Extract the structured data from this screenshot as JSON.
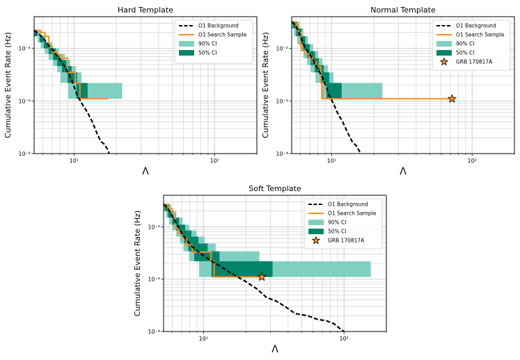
{
  "figure": {
    "x_axis_symbol": "Λ",
    "y_axis_label": "Cumulative Event Rate (Hz)"
  },
  "colors": {
    "background_line": "#000000",
    "search_sample": "#ff8c1a",
    "ci90": "#80d0c2",
    "ci50": "#00856a",
    "grid": "#c8c8c8",
    "star_fill": "#ff8c1a"
  },
  "chart_data": [
    {
      "type": "line",
      "title": "Hard Template",
      "xlabel": "Λ",
      "ylabel": "Cumulative Event Rate (Hz)",
      "xscale": "log",
      "yscale": "log",
      "xlim": [
        5.2,
        200
      ],
      "ylim": [
        0.0001,
        0.04
      ],
      "x_ticks": [
        {
          "value": 10,
          "label": "10¹"
        },
        {
          "value": 100,
          "label": "10²"
        }
      ],
      "y_ticks": [
        {
          "value": 0.0001,
          "label": "10⁻⁴"
        },
        {
          "value": 0.001,
          "label": "10⁻³"
        },
        {
          "value": 0.01,
          "label": "10⁻²"
        }
      ],
      "grid": true,
      "legend_position": "top-right",
      "legend": [
        {
          "key": "background",
          "label": "O1 Background"
        },
        {
          "key": "sample",
          "label": "O1 Search Sample"
        },
        {
          "key": "ci90",
          "label": "90% CI"
        },
        {
          "key": "ci50",
          "label": "50% CI"
        }
      ],
      "series": [
        {
          "name": "O1 Background",
          "style": "dashed",
          "x": [
            5.2,
            5.6,
            6.0,
            6.5,
            7.0,
            7.5,
            8.0,
            8.6,
            9.2,
            9.8,
            10.5,
            11.5,
            12.5,
            13.5,
            14.5,
            15.5,
            16.5,
            17.3,
            17.8
          ],
          "y": [
            0.022,
            0.019,
            0.016,
            0.012,
            0.0095,
            0.0075,
            0.006,
            0.0045,
            0.0032,
            0.0022,
            0.0013,
            0.00085,
            0.0006,
            0.0004,
            0.00025,
            0.00017,
            0.00015,
            0.00012,
            0.0001
          ]
        },
        {
          "name": "O1 Search Sample",
          "style": "step",
          "x": [
            5.2,
            5.8,
            6.2,
            6.6,
            7.0,
            7.5,
            8.0,
            9.0,
            10.2,
            10.8,
            11.0,
            17.5
          ],
          "y": [
            0.022,
            0.02,
            0.017,
            0.011,
            0.0085,
            0.0075,
            0.0065,
            0.0035,
            0.0022,
            0.0022,
            0.0011,
            0.0011
          ]
        }
      ],
      "ci": [
        {
          "y_top": 0.022,
          "y_bot": 0.017,
          "ci90": [
            5.2,
            5.8
          ],
          "ci50": [
            5.2,
            5.5
          ]
        },
        {
          "y_top": 0.017,
          "y_bot": 0.013,
          "ci90": [
            5.5,
            6.3
          ],
          "ci50": [
            5.7,
            6.1
          ]
        },
        {
          "y_top": 0.013,
          "y_bot": 0.01,
          "ci90": [
            5.8,
            7.0
          ],
          "ci50": [
            6.1,
            6.7
          ]
        },
        {
          "y_top": 0.01,
          "y_bot": 0.0078,
          "ci90": [
            6.2,
            7.8
          ],
          "ci50": [
            6.6,
            7.4
          ]
        },
        {
          "y_top": 0.0078,
          "y_bot": 0.006,
          "ci90": [
            6.6,
            8.6
          ],
          "ci50": [
            7.1,
            8.1
          ]
        },
        {
          "y_top": 0.006,
          "y_bot": 0.0046,
          "ci90": [
            7.1,
            9.4
          ],
          "ci50": [
            7.6,
            8.8
          ]
        },
        {
          "y_top": 0.0046,
          "y_bot": 0.0035,
          "ci90": [
            7.6,
            10.3
          ],
          "ci50": [
            8.2,
            9.6
          ]
        },
        {
          "y_top": 0.0035,
          "y_bot": 0.0022,
          "ci90": [
            8.0,
            11.3
          ],
          "ci50": [
            9.0,
            10.5
          ]
        },
        {
          "y_top": 0.0022,
          "y_bot": 0.0011,
          "ci90": [
            9.1,
            22.0
          ],
          "ci50": [
            10.4,
            12.5
          ]
        }
      ]
    },
    {
      "type": "line",
      "title": "Normal Template",
      "xlabel": "Λ",
      "ylabel": "Cumulative Event Rate (Hz)",
      "xscale": "log",
      "yscale": "log",
      "xlim": [
        5.2,
        200
      ],
      "ylim": [
        0.0001,
        0.04
      ],
      "x_ticks": [
        {
          "value": 10,
          "label": "10¹"
        },
        {
          "value": 100,
          "label": "10²"
        }
      ],
      "y_ticks": [
        {
          "value": 0.0001,
          "label": "10⁻⁴"
        },
        {
          "value": 0.001,
          "label": "10⁻³"
        },
        {
          "value": 0.01,
          "label": "10⁻²"
        }
      ],
      "grid": true,
      "legend_position": "top-right",
      "legend": [
        {
          "key": "background",
          "label": "O1 Background"
        },
        {
          "key": "sample",
          "label": "O1 Search Sample"
        },
        {
          "key": "ci90",
          "label": "90% CI"
        },
        {
          "key": "ci50",
          "label": "50% CI"
        },
        {
          "key": "star",
          "label": "GRB 170817A"
        }
      ],
      "series": [
        {
          "name": "O1 Background",
          "style": "dashed",
          "x": [
            5.2,
            5.5,
            5.8,
            6.1,
            6.4,
            6.8,
            7.2,
            7.6,
            8.0,
            8.5,
            9.0,
            9.6,
            10.3,
            11.0,
            12.0,
            13.0,
            14.0,
            15.0,
            15.8,
            16.3
          ],
          "y": [
            0.032,
            0.028,
            0.022,
            0.015,
            0.011,
            0.0085,
            0.0068,
            0.0052,
            0.004,
            0.003,
            0.0021,
            0.0013,
            0.0009,
            0.0006,
            0.0004,
            0.00025,
            0.00017,
            0.00014,
            0.00011,
            0.0001
          ]
        },
        {
          "name": "O1 Search Sample",
          "style": "step",
          "x": [
            5.2,
            5.6,
            5.8,
            6.0,
            6.2,
            6.5,
            6.9,
            7.3,
            7.8,
            8.4,
            8.6,
            72.0
          ],
          "y": [
            0.032,
            0.028,
            0.02,
            0.011,
            0.009,
            0.0078,
            0.0068,
            0.0055,
            0.0045,
            0.0022,
            0.0011,
            0.0011
          ]
        }
      ],
      "ci": [
        {
          "y_top": 0.032,
          "y_bot": 0.024,
          "ci90": [
            5.2,
            5.9
          ],
          "ci50": [
            5.3,
            5.7
          ]
        },
        {
          "y_top": 0.024,
          "y_bot": 0.017,
          "ci90": [
            5.4,
            6.3
          ],
          "ci50": [
            5.6,
            6.1
          ]
        },
        {
          "y_top": 0.017,
          "y_bot": 0.012,
          "ci90": [
            5.7,
            6.8
          ],
          "ci50": [
            6.0,
            6.5
          ]
        },
        {
          "y_top": 0.012,
          "y_bot": 0.0088,
          "ci90": [
            6.0,
            7.4
          ],
          "ci50": [
            6.3,
            7.0
          ]
        },
        {
          "y_top": 0.0088,
          "y_bot": 0.0065,
          "ci90": [
            6.3,
            8.0
          ],
          "ci50": [
            6.7,
            7.6
          ]
        },
        {
          "y_top": 0.0065,
          "y_bot": 0.0048,
          "ci90": [
            6.7,
            8.6
          ],
          "ci50": [
            7.1,
            8.1
          ]
        },
        {
          "y_top": 0.0048,
          "y_bot": 0.0035,
          "ci90": [
            7.1,
            9.4
          ],
          "ci50": [
            7.6,
            8.8
          ]
        },
        {
          "y_top": 0.0035,
          "y_bot": 0.0022,
          "ci90": [
            7.7,
            10.3
          ],
          "ci50": [
            8.3,
            9.6
          ]
        },
        {
          "y_top": 0.0022,
          "y_bot": 0.0011,
          "ci90": [
            8.4,
            23.0
          ],
          "ci50": [
            9.2,
            11.8
          ]
        }
      ],
      "marker": {
        "label": "GRB 170817A",
        "x": 72.0,
        "y": 0.0011
      }
    },
    {
      "type": "line",
      "title": "Soft Template",
      "xlabel": "Λ",
      "ylabel": "Cumulative Event Rate (Hz)",
      "xscale": "log",
      "yscale": "log",
      "xlim": [
        5.2,
        200
      ],
      "ylim": [
        0.0001,
        0.04
      ],
      "x_ticks": [
        {
          "value": 10,
          "label": "10¹"
        },
        {
          "value": 100,
          "label": "10²"
        }
      ],
      "y_ticks": [
        {
          "value": 0.0001,
          "label": "10⁻⁴"
        },
        {
          "value": 0.001,
          "label": "10⁻³"
        },
        {
          "value": 0.01,
          "label": "10⁻²"
        }
      ],
      "grid": true,
      "legend_position": "top-right",
      "legend": [
        {
          "key": "background",
          "label": "O1 Background"
        },
        {
          "key": "sample",
          "label": "O1 Search Sample"
        },
        {
          "key": "ci90",
          "label": "90% CI"
        },
        {
          "key": "ci50",
          "label": "50% CI"
        },
        {
          "key": "star",
          "label": "GRB 170817A"
        }
      ],
      "series": [
        {
          "name": "O1 Background",
          "style": "dashed",
          "x": [
            5.2,
            5.6,
            6.0,
            6.5,
            7.0,
            7.6,
            8.3,
            9.0,
            10.0,
            11.5,
            13.0,
            15.0,
            17.0,
            20.0,
            24.0,
            28.0,
            33.0,
            38.0,
            45.0,
            55.0,
            65.0,
            75.0,
            85.0,
            95.0,
            100.0
          ],
          "y": [
            0.027,
            0.022,
            0.016,
            0.011,
            0.0075,
            0.0055,
            0.0042,
            0.0035,
            0.0028,
            0.0022,
            0.0018,
            0.0014,
            0.00115,
            0.0009,
            0.00065,
            0.00045,
            0.00038,
            0.0003,
            0.00022,
            0.0002,
            0.00017,
            0.00016,
            0.00014,
            0.00011,
            0.0001
          ]
        },
        {
          "name": "O1 Search Sample",
          "style": "step",
          "x": [
            5.2,
            5.6,
            6.0,
            6.3,
            6.6,
            7.0,
            7.6,
            8.3,
            8.8,
            11.3,
            11.9,
            26.0
          ],
          "y": [
            0.027,
            0.022,
            0.017,
            0.0095,
            0.0075,
            0.006,
            0.0045,
            0.0033,
            0.0033,
            0.0022,
            0.0011,
            0.0011
          ]
        }
      ],
      "ci": [
        {
          "y_top": 0.027,
          "y_bot": 0.02,
          "ci90": [
            5.2,
            5.9
          ],
          "ci50": [
            5.3,
            5.7
          ]
        },
        {
          "y_top": 0.02,
          "y_bot": 0.015,
          "ci90": [
            5.4,
            6.4
          ],
          "ci50": [
            5.6,
            6.1
          ]
        },
        {
          "y_top": 0.015,
          "y_bot": 0.011,
          "ci90": [
            5.7,
            7.1
          ],
          "ci50": [
            6.0,
            6.7
          ]
        },
        {
          "y_top": 0.011,
          "y_bot": 0.0085,
          "ci90": [
            6.0,
            7.9
          ],
          "ci50": [
            6.4,
            7.4
          ]
        },
        {
          "y_top": 0.0085,
          "y_bot": 0.0065,
          "ci90": [
            6.4,
            8.9
          ],
          "ci50": [
            6.9,
            8.2
          ]
        },
        {
          "y_top": 0.0065,
          "y_bot": 0.0048,
          "ci90": [
            6.8,
            10.2
          ],
          "ci50": [
            7.3,
            9.2
          ]
        },
        {
          "y_top": 0.0048,
          "y_bot": 0.0034,
          "ci90": [
            7.2,
            12.2
          ],
          "ci50": [
            7.8,
            10.7
          ]
        },
        {
          "y_top": 0.0034,
          "y_bot": 0.0022,
          "ci90": [
            7.9,
            25.0
          ],
          "ci50": [
            8.6,
            13.0
          ]
        },
        {
          "y_top": 0.0022,
          "y_bot": 0.0011,
          "ci90": [
            9.3,
            155.0
          ],
          "ci50": [
            11.4,
            31.0
          ]
        }
      ],
      "marker": {
        "label": "GRB 170817A",
        "x": 26.0,
        "y": 0.0011
      }
    }
  ]
}
